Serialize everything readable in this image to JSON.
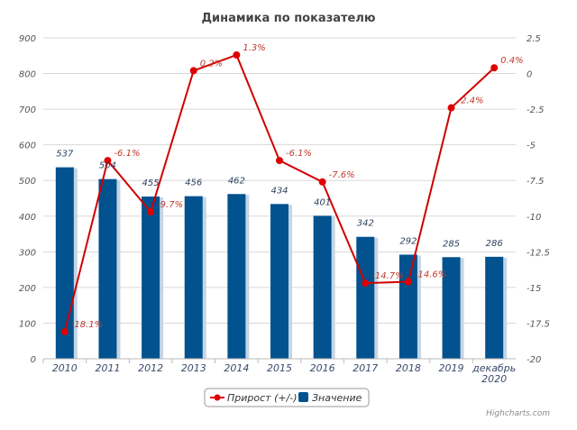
{
  "chart_data": {
    "type": "bar+line",
    "title": "Динамика по показателю",
    "categories": [
      "2010",
      "2011",
      "2012",
      "2013",
      "2014",
      "2015",
      "2016",
      "2017",
      "2018",
      "2019",
      "декабрь 2020"
    ],
    "series": [
      {
        "name": "Прирост (+/-)",
        "type": "line",
        "axis": "right",
        "color": "#e00000",
        "values": [
          -18.1,
          -6.1,
          -9.7,
          0.2,
          1.3,
          -6.1,
          -7.6,
          -14.7,
          -14.6,
          -2.4,
          0.4
        ],
        "labels": [
          "-18.1%",
          "-6.1%",
          "-9.7%",
          "0.2%",
          "1.3%",
          "-6.1%",
          "-7.6%",
          "-14.7%",
          "-14.6%",
          "-2.4%",
          "0.4%"
        ]
      },
      {
        "name": "Значение",
        "type": "bar",
        "axis": "left",
        "color": "#02528f",
        "values": [
          537,
          504,
          455,
          456,
          462,
          434,
          401,
          342,
          292,
          285,
          286
        ]
      }
    ],
    "yleft": {
      "min": 0,
      "max": 900,
      "ticks": [
        0,
        100,
        200,
        300,
        400,
        500,
        600,
        700,
        800,
        900
      ]
    },
    "yright": {
      "min": -20,
      "max": 2.5,
      "ticks": [
        -20,
        -17.5,
        -15,
        -12.5,
        -10,
        -7.5,
        -5,
        -2.5,
        0,
        2.5
      ]
    },
    "legend": "bottom-center",
    "grid": true,
    "credits": "Highcharts.com"
  }
}
